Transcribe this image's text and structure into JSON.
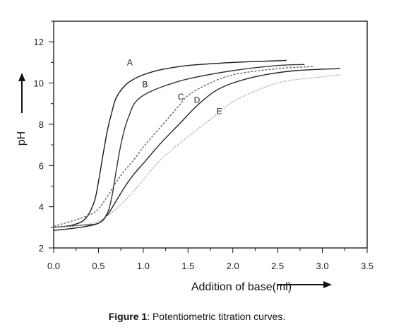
{
  "caption": {
    "label": "Figure 1",
    "text": ": Potentiometric titration curves."
  },
  "chart_data": {
    "type": "line",
    "xlabel": "Addition of base(ml)",
    "ylabel": "pH",
    "xlim": [
      0.0,
      3.5
    ],
    "ylim": [
      2,
      13
    ],
    "xticks": [
      "0.0",
      "0.5",
      "1.0",
      "1.5",
      "2.0",
      "2.5",
      "3.0",
      "3.5"
    ],
    "yticks": [
      "2",
      "4",
      "6",
      "8",
      "10",
      "12"
    ],
    "grid": false,
    "series": [
      {
        "name": "A",
        "color": "#1a1a1a",
        "dash": "",
        "x": [
          0.0,
          0.2,
          0.35,
          0.45,
          0.5,
          0.55,
          0.6,
          0.65,
          0.7,
          0.8,
          0.9,
          1.0,
          1.2,
          1.5,
          2.0,
          2.5,
          2.6
        ],
        "y": [
          3.0,
          3.1,
          3.4,
          4.2,
          5.2,
          6.5,
          7.7,
          8.6,
          9.3,
          9.9,
          10.2,
          10.4,
          10.65,
          10.85,
          11.0,
          11.08,
          11.1
        ]
      },
      {
        "name": "B",
        "color": "#333333",
        "dash": "",
        "x": [
          0.0,
          0.3,
          0.5,
          0.6,
          0.65,
          0.7,
          0.75,
          0.8,
          0.85,
          0.9,
          1.0,
          1.2,
          1.5,
          2.0,
          2.5,
          2.8
        ],
        "y": [
          3.0,
          3.1,
          3.2,
          3.7,
          4.5,
          5.8,
          7.0,
          7.9,
          8.5,
          9.0,
          9.4,
          9.8,
          10.2,
          10.6,
          10.85,
          10.9
        ]
      },
      {
        "name": "C",
        "color": "#666666",
        "dash": "3,2",
        "x": [
          0.0,
          0.2,
          0.4,
          0.5,
          0.6,
          0.7,
          0.8,
          0.9,
          1.0,
          1.1,
          1.2,
          1.3,
          1.4,
          1.5,
          1.7,
          2.0,
          2.5,
          2.9
        ],
        "y": [
          3.05,
          3.3,
          3.6,
          3.9,
          4.5,
          5.2,
          5.8,
          6.3,
          6.9,
          7.4,
          7.9,
          8.4,
          8.9,
          9.4,
          9.9,
          10.4,
          10.7,
          10.8
        ]
      },
      {
        "name": "D",
        "color": "#222222",
        "dash": "",
        "x": [
          0.0,
          0.3,
          0.5,
          0.6,
          0.7,
          0.8,
          0.9,
          1.0,
          1.2,
          1.4,
          1.6,
          1.8,
          2.0,
          2.3,
          2.7,
          3.2
        ],
        "y": [
          2.85,
          3.0,
          3.2,
          3.6,
          4.3,
          5.0,
          5.6,
          6.1,
          7.1,
          8.0,
          8.9,
          9.6,
          10.0,
          10.35,
          10.6,
          10.7
        ]
      },
      {
        "name": "E",
        "color": "#aaaaaa",
        "dash": "2,2",
        "x": [
          0.0,
          0.3,
          0.5,
          0.7,
          0.9,
          1.0,
          1.2,
          1.5,
          1.8,
          2.0,
          2.3,
          2.6,
          3.0,
          3.2
        ],
        "y": [
          3.0,
          3.1,
          3.3,
          3.9,
          4.8,
          5.3,
          6.3,
          7.4,
          8.4,
          9.1,
          9.7,
          10.1,
          10.3,
          10.4
        ]
      }
    ],
    "annotations": [
      {
        "text": "A",
        "x": 0.85,
        "y": 10.85
      },
      {
        "text": "B",
        "x": 1.02,
        "y": 9.8
      },
      {
        "text": "C",
        "x": 1.42,
        "y": 9.2
      },
      {
        "text": "D",
        "x": 1.6,
        "y": 9.05
      },
      {
        "text": "E",
        "x": 1.85,
        "y": 8.5
      }
    ]
  }
}
